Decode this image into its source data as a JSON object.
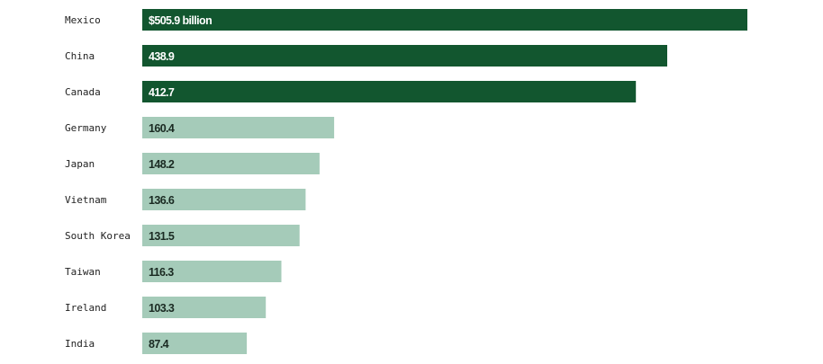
{
  "chart_data": {
    "type": "bar",
    "orientation": "horizontal",
    "title": "",
    "xlabel": "",
    "ylabel": "",
    "categories": [
      "Mexico",
      "China",
      "Canada",
      "Germany",
      "Japan",
      "Vietnam",
      "South Korea",
      "Taiwan",
      "Ireland",
      "India"
    ],
    "values": [
      505.9,
      438.9,
      412.7,
      160.4,
      148.2,
      136.6,
      131.5,
      116.3,
      103.3,
      87.4
    ],
    "value_labels": [
      "$505.9 billion",
      "438.9",
      "412.7",
      "160.4",
      "148.2",
      "136.6",
      "131.5",
      "116.3",
      "103.3",
      "87.4"
    ],
    "highlight_count": 3,
    "colors": {
      "highlight": "#12562f",
      "normal": "#a5cbb9",
      "highlight_text": "#ffffff",
      "normal_text": "#1a2a22"
    },
    "grid": false,
    "legend": "none"
  }
}
